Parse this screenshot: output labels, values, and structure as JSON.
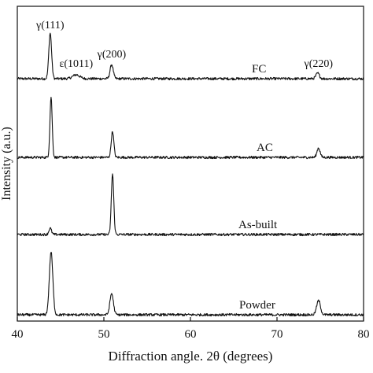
{
  "chart_data": {
    "type": "line",
    "title": "",
    "xlabel": "Diffraction angle. 2θ (degrees)",
    "ylabel": "Intensity (a.u.)",
    "xlim": [
      40,
      80
    ],
    "x_ticks": [
      40,
      50,
      60,
      70,
      80
    ],
    "y_ticks_shown": false,
    "grid": false,
    "legend": "none; series names printed at the right of each pattern",
    "ylim_normalized": [
      0,
      4
    ],
    "series": [
      {
        "name": "FC",
        "baseline": 3.08,
        "peaks": [
          {
            "x": 43.8,
            "h": 0.58,
            "w": 0.16
          },
          {
            "x": 46.8,
            "h": 0.05,
            "w": 0.4
          },
          {
            "x": 50.9,
            "h": 0.18,
            "w": 0.18
          },
          {
            "x": 74.7,
            "h": 0.07,
            "w": 0.2
          }
        ]
      },
      {
        "name": "AC",
        "baseline": 2.08,
        "peaks": [
          {
            "x": 43.9,
            "h": 0.77,
            "w": 0.13
          },
          {
            "x": 51.0,
            "h": 0.33,
            "w": 0.15
          },
          {
            "x": 74.8,
            "h": 0.12,
            "w": 0.18
          }
        ]
      },
      {
        "name": "As-built",
        "baseline": 1.1,
        "peaks": [
          {
            "x": 43.8,
            "h": 0.08,
            "w": 0.15
          },
          {
            "x": 51.0,
            "h": 0.77,
            "w": 0.14
          }
        ]
      },
      {
        "name": "Powder",
        "baseline": 0.08,
        "peaks": [
          {
            "x": 43.9,
            "h": 0.8,
            "w": 0.2
          },
          {
            "x": 50.9,
            "h": 0.27,
            "w": 0.2
          },
          {
            "x": 74.8,
            "h": 0.18,
            "w": 0.22
          }
        ]
      }
    ],
    "annotations": [
      {
        "text": "γ(111)",
        "x": 43.8,
        "y": 3.72
      },
      {
        "text": "ε(1011)",
        "x": 46.8,
        "y": 3.23
      },
      {
        "text": "γ(200)",
        "x": 50.9,
        "y": 3.35
      },
      {
        "text": "γ(220)",
        "x": 74.8,
        "y": 3.23
      }
    ]
  }
}
